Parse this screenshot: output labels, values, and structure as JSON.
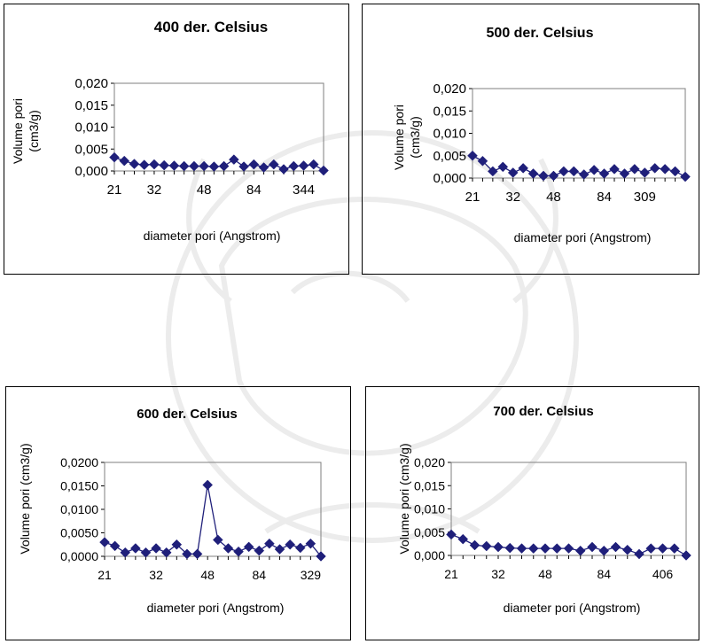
{
  "chart_data": [
    {
      "type": "line",
      "title": "400 der. Celsius",
      "xlabel": "diameter pori (Angstrom)",
      "ylabel_lines": [
        "Volume pori",
        "(cm3/g)"
      ],
      "ylim": [
        0,
        0.02
      ],
      "yticks": [
        "0,000",
        "0,005",
        "0,010",
        "0,015",
        "0,020"
      ],
      "xtick_labels": [
        "21",
        "32",
        "48",
        "84",
        "344"
      ],
      "xtick_indices": [
        0,
        4,
        9,
        14,
        19
      ],
      "grid": false,
      "legend": "none",
      "marker": "diamond",
      "color": "#1F1F7A",
      "line": false,
      "values": [
        0.0031,
        0.0023,
        0.0016,
        0.0014,
        0.0015,
        0.0013,
        0.0012,
        0.0011,
        0.0011,
        0.0011,
        0.001,
        0.0011,
        0.0026,
        0.001,
        0.0015,
        0.0008,
        0.0015,
        0.0004,
        0.0011,
        0.0012,
        0.0015,
        0.0001
      ]
    },
    {
      "type": "line",
      "title": "500 der. Celsius",
      "xlabel": "diameter pori (Angstrom)",
      "ylabel_lines": [
        "Volume pori",
        "(cm3/g)"
      ],
      "ylim": [
        0,
        0.02
      ],
      "yticks": [
        "0,000",
        "0,005",
        "0,010",
        "0,015",
        "0,020"
      ],
      "xtick_labels": [
        "21",
        "32",
        "48",
        "84",
        "309"
      ],
      "xtick_indices": [
        0,
        4,
        8,
        13,
        17
      ],
      "grid": false,
      "legend": "none",
      "marker": "diamond",
      "color": "#1F1F7A",
      "line": false,
      "values": [
        0.005,
        0.0038,
        0.0015,
        0.0025,
        0.0012,
        0.0022,
        0.001,
        0.0005,
        0.0005,
        0.0015,
        0.0015,
        0.0008,
        0.0018,
        0.001,
        0.002,
        0.001,
        0.002,
        0.0012,
        0.0022,
        0.002,
        0.0015,
        0.0003
      ]
    },
    {
      "type": "line",
      "title": "600 der. Celsius",
      "xlabel": "diameter pori (Angstrom)",
      "ylabel_lines": [
        "Volume pori (cm3/g)"
      ],
      "ylim": [
        0,
        0.02
      ],
      "yticks": [
        "0,0000",
        "0,0050",
        "0,0100",
        "0,0150",
        "0,0200"
      ],
      "xtick_labels": [
        "21",
        "32",
        "48",
        "84",
        "329"
      ],
      "xtick_indices": [
        0,
        5,
        10,
        15,
        20
      ],
      "grid": false,
      "legend": "none",
      "marker": "diamond",
      "color": "#1F1F7A",
      "line": true,
      "values": [
        0.003,
        0.0022,
        0.0008,
        0.0017,
        0.0008,
        0.0017,
        0.0008,
        0.0025,
        0.0005,
        0.0005,
        0.0152,
        0.0035,
        0.0017,
        0.001,
        0.002,
        0.0012,
        0.0027,
        0.0015,
        0.0025,
        0.0018,
        0.0027,
        0.0
      ]
    },
    {
      "type": "line",
      "title": "700 der. Celsius",
      "xlabel": "diameter pori (Angstrom)",
      "ylabel_lines": [
        "Volume pori (cm3/g)"
      ],
      "ylim": [
        0,
        0.02
      ],
      "yticks": [
        "0,000",
        "0,005",
        "0,010",
        "0,015",
        "0,020"
      ],
      "xtick_labels": [
        "21",
        "32",
        "48",
        "84",
        "406"
      ],
      "xtick_indices": [
        0,
        4,
        8,
        13,
        18
      ],
      "grid": false,
      "legend": "none",
      "marker": "diamond",
      "color": "#1F1F7A",
      "line": false,
      "values": [
        0.0045,
        0.0035,
        0.0022,
        0.002,
        0.0018,
        0.0016,
        0.0015,
        0.0015,
        0.0015,
        0.0015,
        0.0015,
        0.001,
        0.0018,
        0.001,
        0.0018,
        0.0012,
        0.0003,
        0.0015,
        0.0015,
        0.0015,
        0.0
      ]
    }
  ]
}
